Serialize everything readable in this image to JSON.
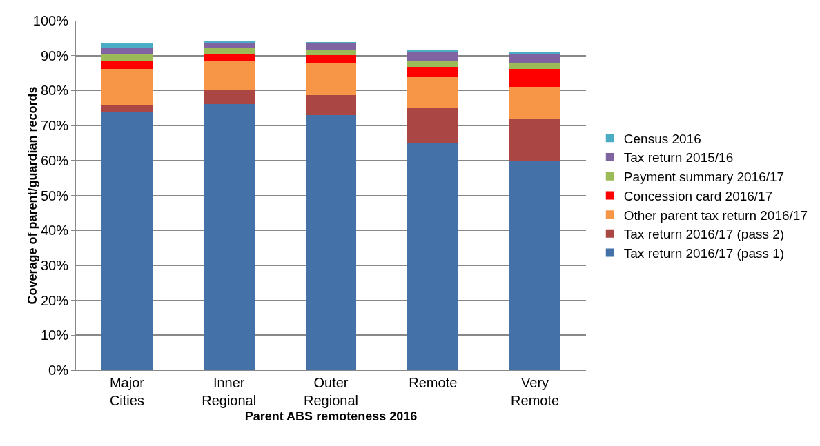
{
  "chart_data": {
    "type": "bar",
    "stacked": true,
    "xlabel": "Parent ABS remoteness 2016",
    "ylabel": "Coverage of parent/guardian records",
    "categories": [
      "Major Cities",
      "Inner Regional",
      "Outer Regional",
      "Remote",
      "Very Remote"
    ],
    "series": [
      {
        "name": "Tax return 2016/17 (pass 1)",
        "color": "#4472a8",
        "values": [
          74.0,
          76.2,
          73.0,
          65.0,
          60.0
        ]
      },
      {
        "name": "Tax return 2016/17 (pass 2)",
        "color": "#aa4644",
        "values": [
          1.9,
          3.8,
          5.7,
          10.1,
          12.0
        ]
      },
      {
        "name": "Other parent tax return 2016/17",
        "color": "#f79646",
        "values": [
          10.3,
          8.5,
          9.0,
          9.0,
          9.0
        ]
      },
      {
        "name": "Concession card 2016/17",
        "color": "#ff0000",
        "values": [
          2.1,
          1.8,
          2.4,
          2.6,
          5.2
        ]
      },
      {
        "name": "Payment summary 2016/17",
        "color": "#9bbb59",
        "values": [
          2.2,
          1.8,
          1.5,
          1.8,
          1.8
        ]
      },
      {
        "name": "Tax return 2015/16",
        "color": "#8064a2",
        "values": [
          1.9,
          1.7,
          1.8,
          2.7,
          2.6
        ]
      },
      {
        "name": "Census 2016",
        "color": "#4bacc6",
        "values": [
          1.0,
          0.1,
          0.5,
          0.2,
          0.5
        ]
      }
    ],
    "ylim": [
      0,
      100
    ],
    "yticks": [
      {
        "value": 0,
        "label": "0%"
      },
      {
        "value": 10,
        "label": "10%"
      },
      {
        "value": 20,
        "label": "20%"
      },
      {
        "value": 30,
        "label": "30%"
      },
      {
        "value": 40,
        "label": "40%"
      },
      {
        "value": 50,
        "label": "50%"
      },
      {
        "value": 60,
        "label": "60%"
      },
      {
        "value": 70,
        "label": "70%"
      },
      {
        "value": 80,
        "label": "80%"
      },
      {
        "value": 90,
        "label": "90%"
      },
      {
        "value": 100,
        "label": "100%"
      }
    ],
    "grid": "y",
    "legend": "right"
  }
}
